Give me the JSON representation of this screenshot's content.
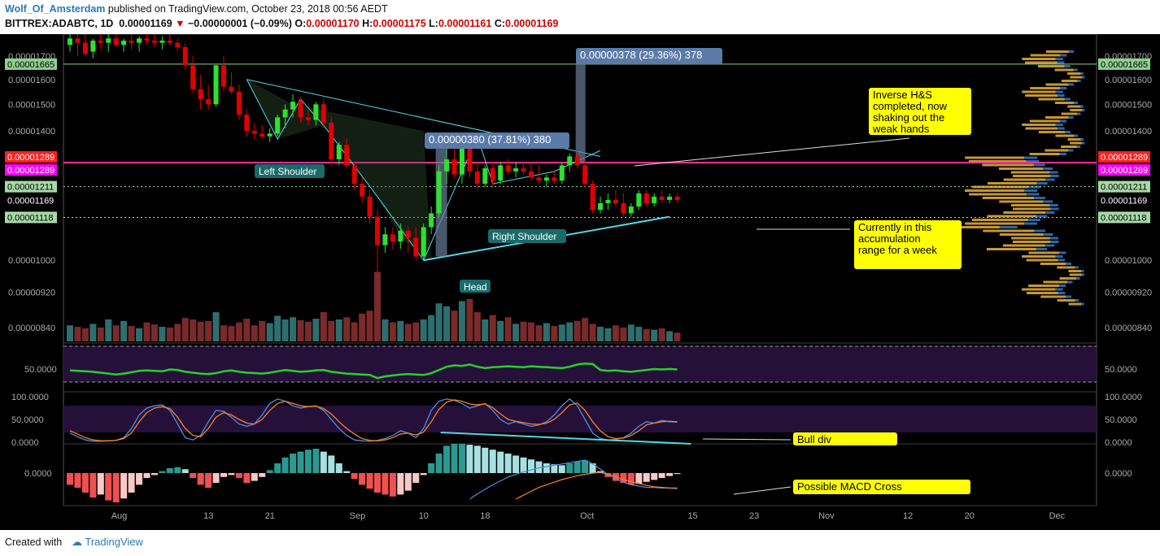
{
  "header": {
    "author": "Wolf_Of_Amsterdam",
    "published": " published on TradingView.com, October 23, 2018 00:56 AEDT",
    "symbol": "BITTREX:ADABTC, 1D",
    "price": "0.00001169",
    "change": "−0.00000001 (−0.09%)",
    "o_label": "O:",
    "o_val": "0.00001170",
    "h_label": "H:",
    "h_val": "0.00001175",
    "l_label": "L:",
    "l_val": "0.00001161",
    "c_label": "C:",
    "c_val": "0.00001169"
  },
  "footer": {
    "created": "Created with",
    "brand": "TradingView"
  },
  "colors": {
    "up": "#2ee12e",
    "down": "#e00000",
    "pink": "#ff2fa0",
    "magenta": "#ff00ff",
    "cyan": "#4fd8e8",
    "yellow": "#ffff00"
  },
  "chart_data": [
    {
      "type": "candlestick",
      "title": "BITTREX:ADABTC, 1D",
      "ylim": [
        8.1e-06,
        1.8e-05
      ],
      "log_scale": true,
      "y_ticks": [
        "0.00001700",
        "0.00001600",
        "0.00001500",
        "0.00001400",
        "0.00001000",
        "0.00000920",
        "0.00000840"
      ],
      "x_ticks": [
        "Aug",
        "13",
        "21",
        "Sep",
        "10",
        "18",
        "Oct",
        "15",
        "23",
        "Nov",
        "12",
        "20",
        "Dec"
      ],
      "x_tick_dates": [
        "2018-08-01",
        "2018-08-13",
        "2018-08-21",
        "2018-09-01",
        "2018-09-10",
        "2018-09-18",
        "2018-10-01",
        "2018-10-15",
        "2018-10-23",
        "2018-11-01",
        "2018-11-12",
        "2018-11-20",
        "2018-12-01"
      ],
      "date_start": "2018-07-26",
      "price_tags": [
        {
          "label": "0.00001665",
          "color": "#8fd08f",
          "text_color": "#000"
        },
        {
          "label": "0.00001289",
          "color": "#ff2020",
          "text_color": "#fff"
        },
        {
          "label": "0.00001289",
          "color": "#ff00ff",
          "text_color": "#fff"
        },
        {
          "label": "0.00001211",
          "color": "#a8d8a8",
          "text_color": "#000"
        },
        {
          "label": "0.00001169",
          "color": "#000000",
          "text_color": "#fff"
        },
        {
          "label": "0.00001118",
          "color": "#a8d8a8",
          "text_color": "#000"
        }
      ],
      "candles": [
        [
          1.75e-05,
          1.82e-05,
          1.72e-05,
          1.78e-05
        ],
        [
          1.78e-05,
          1.83e-05,
          1.7e-05,
          1.76e-05
        ],
        [
          1.76e-05,
          1.8e-05,
          1.7e-05,
          1.71e-05
        ],
        [
          1.72e-05,
          1.78e-05,
          1.69e-05,
          1.77e-05
        ],
        [
          1.77e-05,
          1.81e-05,
          1.73e-05,
          1.76e-05
        ],
        [
          1.76e-05,
          1.8e-05,
          1.72e-05,
          1.78e-05
        ],
        [
          1.78e-05,
          1.82e-05,
          1.74e-05,
          1.75e-05
        ],
        [
          1.75e-05,
          1.78e-05,
          1.72e-05,
          1.77e-05
        ],
        [
          1.77e-05,
          1.81e-05,
          1.73e-05,
          1.76e-05
        ],
        [
          1.76e-05,
          1.79e-05,
          1.72e-05,
          1.78e-05
        ],
        [
          1.78e-05,
          1.81e-05,
          1.75e-05,
          1.77e-05
        ],
        [
          1.77e-05,
          1.8e-05,
          1.74e-05,
          1.76e-05
        ],
        [
          1.76e-05,
          1.79e-05,
          1.73e-05,
          1.77e-05
        ],
        [
          1.77e-05,
          1.8e-05,
          1.75e-05,
          1.76e-05
        ],
        [
          1.76e-05,
          1.78e-05,
          1.72e-05,
          1.74e-05
        ],
        [
          1.74e-05,
          1.76e-05,
          1.64e-05,
          1.66e-05
        ],
        [
          1.66e-05,
          1.7e-05,
          1.54e-05,
          1.56e-05
        ],
        [
          1.56e-05,
          1.62e-05,
          1.48e-05,
          1.52e-05
        ],
        [
          1.52e-05,
          1.58e-05,
          1.48e-05,
          1.5e-05
        ],
        [
          1.5e-05,
          1.66e-05,
          1.49e-05,
          1.66e-05
        ],
        [
          1.66e-05,
          1.7e-05,
          1.55e-05,
          1.57e-05
        ],
        [
          1.57e-05,
          1.63e-05,
          1.54e-05,
          1.55e-05
        ],
        [
          1.55e-05,
          1.58e-05,
          1.44e-05,
          1.46e-05
        ],
        [
          1.46e-05,
          1.48e-05,
          1.38e-05,
          1.4e-05
        ],
        [
          1.4e-05,
          1.43e-05,
          1.37e-05,
          1.39e-05
        ],
        [
          1.39e-05,
          1.42e-05,
          1.37e-05,
          1.38e-05
        ],
        [
          1.38e-05,
          1.41e-05,
          1.36e-05,
          1.39e-05
        ],
        [
          1.39e-05,
          1.46e-05,
          1.38e-05,
          1.45e-05
        ],
        [
          1.45e-05,
          1.5e-05,
          1.41e-05,
          1.48e-05
        ],
        [
          1.48e-05,
          1.54e-05,
          1.45e-05,
          1.51e-05
        ],
        [
          1.51e-05,
          1.53e-05,
          1.43e-05,
          1.45e-05
        ],
        [
          1.45e-05,
          1.48e-05,
          1.42e-05,
          1.44e-05
        ],
        [
          1.44e-05,
          1.51e-05,
          1.42e-05,
          1.5e-05
        ],
        [
          1.5e-05,
          1.52e-05,
          1.41e-05,
          1.43e-05
        ],
        [
          1.43e-05,
          1.45e-05,
          1.28e-05,
          1.3e-05
        ],
        [
          1.3e-05,
          1.36e-05,
          1.28e-05,
          1.35e-05
        ],
        [
          1.35e-05,
          1.37e-05,
          1.27e-05,
          1.28e-05
        ],
        [
          1.28e-05,
          1.29e-05,
          1.2e-05,
          1.22e-05
        ],
        [
          1.22e-05,
          1.24e-05,
          1.16e-05,
          1.18e-05
        ],
        [
          1.18e-05,
          1.2e-05,
          1.1e-05,
          1.12e-05
        ],
        [
          1.12e-05,
          1.14e-05,
          8.2e-06,
          1.04e-05
        ],
        [
          1.04e-05,
          1.09e-05,
          1.02e-05,
          1.07e-05
        ],
        [
          1.07e-05,
          1.09e-05,
          1.03e-05,
          1.05e-05
        ],
        [
          1.05e-05,
          1.1e-05,
          1.03e-05,
          1.08e-05
        ],
        [
          1.08e-05,
          1.09e-05,
          1.02e-05,
          1.06e-05
        ],
        [
          1.06e-05,
          1.09e-05,
          1e-05,
          1.01e-05
        ],
        [
          1.01e-05,
          1.1e-05,
          1e-05,
          1.09e-05
        ],
        [
          1.09e-05,
          1.15e-05,
          1.07e-05,
          1.13e-05
        ],
        [
          1.13e-05,
          1.28e-05,
          1.12e-05,
          1.26e-05
        ],
        [
          1.26e-05,
          1.35e-05,
          1.22e-05,
          1.3e-05
        ],
        [
          1.3e-05,
          1.34e-05,
          1.24e-05,
          1.25e-05
        ],
        [
          1.25e-05,
          1.38e-05,
          1.22e-05,
          1.36e-05
        ],
        [
          1.36e-05,
          1.38e-05,
          1.24e-05,
          1.26e-05
        ],
        [
          1.26e-05,
          1.29e-05,
          1.2e-05,
          1.22e-05
        ],
        [
          1.22e-05,
          1.28e-05,
          1.21e-05,
          1.27e-05
        ],
        [
          1.27e-05,
          1.29e-05,
          1.21e-05,
          1.23e-05
        ],
        [
          1.23e-05,
          1.29e-05,
          1.22e-05,
          1.28e-05
        ],
        [
          1.28e-05,
          1.3e-05,
          1.25e-05,
          1.26e-05
        ],
        [
          1.26e-05,
          1.29e-05,
          1.24e-05,
          1.27e-05
        ],
        [
          1.27e-05,
          1.29e-05,
          1.25e-05,
          1.26e-05
        ],
        [
          1.26e-05,
          1.29e-05,
          1.23e-05,
          1.24e-05
        ],
        [
          1.24e-05,
          1.28e-05,
          1.22e-05,
          1.23e-05
        ],
        [
          1.23e-05,
          1.25e-05,
          1.21e-05,
          1.24e-05
        ],
        [
          1.24e-05,
          1.26e-05,
          1.22e-05,
          1.23e-05
        ],
        [
          1.23e-05,
          1.29e-05,
          1.22e-05,
          1.28e-05
        ],
        [
          1.28e-05,
          1.32e-05,
          1.26e-05,
          1.31e-05
        ],
        [
          1.31e-05,
          1.33e-05,
          1.27e-05,
          1.28e-05
        ],
        [
          1.28e-05,
          1.31e-05,
          1.21e-05,
          1.22e-05
        ],
        [
          1.22e-05,
          1.23e-05,
          1.13e-05,
          1.14e-05
        ],
        [
          1.14e-05,
          1.18e-05,
          1.13e-05,
          1.16e-05
        ],
        [
          1.16e-05,
          1.19e-05,
          1.14e-05,
          1.17e-05
        ],
        [
          1.17e-05,
          1.2e-05,
          1.15e-05,
          1.16e-05
        ],
        [
          1.16e-05,
          1.19e-05,
          1.12e-05,
          1.13e-05
        ],
        [
          1.13e-05,
          1.16e-05,
          1.12e-05,
          1.15e-05
        ],
        [
          1.15e-05,
          1.2e-05,
          1.14e-05,
          1.19e-05
        ],
        [
          1.19e-05,
          1.2e-05,
          1.15e-05,
          1.16e-05
        ],
        [
          1.16e-05,
          1.19e-05,
          1.15e-05,
          1.18e-05
        ],
        [
          1.18e-05,
          1.2e-05,
          1.16e-05,
          1.17e-05
        ],
        [
          1.17e-05,
          1.19e-05,
          1.16e-05,
          1.18e-05
        ],
        [
          1.18e-05,
          1.19e-05,
          1.16e-05,
          1.17e-05
        ]
      ],
      "volume": [
        22,
        20,
        18,
        24,
        19,
        30,
        22,
        28,
        21,
        18,
        26,
        23,
        20,
        19,
        24,
        32,
        30,
        27,
        28,
        40,
        22,
        21,
        26,
        31,
        22,
        28,
        25,
        35,
        30,
        33,
        29,
        27,
        31,
        40,
        28,
        30,
        33,
        26,
        38,
        42,
        95,
        30,
        26,
        28,
        24,
        26,
        30,
        36,
        52,
        48,
        42,
        55,
        58,
        40,
        30,
        36,
        28,
        33,
        24,
        27,
        26,
        22,
        25,
        21,
        23,
        26,
        28,
        32,
        24,
        20,
        18,
        22,
        19,
        23,
        20,
        17,
        16,
        18,
        14,
        12
      ],
      "annotations": [
        "0.00000378 (29.36%) 378",
        "0.00000380 (37.81%) 380",
        "Left Shoulder",
        "Head",
        "Right Shoulder",
        "Inverse H&S completed, now shaking out the weak hands",
        "Currently in this accumulation range for a week"
      ]
    },
    {
      "type": "line",
      "name": "RSI",
      "y_ticks": [
        "50.0000"
      ],
      "ylim": [
        0,
        100
      ],
      "values": [
        47,
        46,
        45,
        44,
        42,
        40,
        38,
        40,
        43,
        46,
        47,
        46,
        45,
        49,
        48,
        44,
        42,
        40,
        39,
        41,
        45,
        47,
        44,
        42,
        41,
        40,
        42,
        45,
        48,
        46,
        44,
        45,
        47,
        48,
        44,
        42,
        40,
        39,
        38,
        37,
        30,
        34,
        36,
        38,
        39,
        38,
        37,
        41,
        48,
        55,
        58,
        57,
        60,
        55,
        52,
        54,
        55,
        56,
        55,
        54,
        56,
        55,
        54,
        53,
        52,
        55,
        60,
        62,
        61,
        48,
        46,
        47,
        45,
        44,
        46,
        48,
        50,
        49,
        50,
        49
      ]
    },
    {
      "type": "line",
      "name": "Stoch RSI",
      "y_ticks": [
        "100.0000",
        "50.0000",
        "0.0000"
      ],
      "ylim": [
        0,
        100
      ],
      "annotation": "Bull div",
      "series": [
        {
          "color": "#4a90e2",
          "values": [
            20,
            12,
            5,
            2,
            2,
            3,
            4,
            10,
            30,
            60,
            75,
            80,
            82,
            70,
            40,
            10,
            5,
            15,
            45,
            70,
            68,
            55,
            40,
            35,
            40,
            60,
            85,
            95,
            90,
            80,
            75,
            78,
            80,
            70,
            50,
            30,
            15,
            5,
            3,
            2,
            4,
            8,
            15,
            25,
            20,
            10,
            30,
            70,
            90,
            95,
            92,
            85,
            75,
            80,
            85,
            70,
            50,
            40,
            45,
            40,
            35,
            38,
            45,
            60,
            80,
            95,
            80,
            50,
            20,
            8,
            5,
            6,
            10,
            20,
            35,
            45,
            42,
            48,
            45,
            44
          ]
        },
        {
          "color": "#ff7f27",
          "values": [
            25,
            18,
            10,
            5,
            3,
            3,
            4,
            8,
            20,
            45,
            65,
            75,
            78,
            74,
            55,
            30,
            15,
            12,
            30,
            55,
            65,
            60,
            50,
            42,
            40,
            50,
            70,
            85,
            90,
            85,
            80,
            78,
            79,
            74,
            62,
            45,
            30,
            18,
            8,
            4,
            3,
            5,
            10,
            18,
            20,
            16,
            22,
            45,
            72,
            88,
            93,
            90,
            84,
            82,
            84,
            76,
            62,
            50,
            46,
            43,
            40,
            39,
            42,
            50,
            65,
            82,
            86,
            70,
            45,
            25,
            12,
            8,
            9,
            15,
            25,
            38,
            42,
            45,
            46,
            45
          ]
        }
      ]
    },
    {
      "type": "bar",
      "name": "MACD",
      "y_ticks": [
        "0.0000"
      ],
      "annotation": "Possible MACD Cross",
      "histogram": [
        -12,
        -15,
        -20,
        -25,
        -22,
        -28,
        -30,
        -26,
        -20,
        -12,
        -5,
        -2,
        2,
        5,
        6,
        4,
        -5,
        -12,
        -15,
        -10,
        -4,
        -2,
        -5,
        -10,
        -8,
        -4,
        3,
        10,
        16,
        20,
        22,
        24,
        25,
        22,
        18,
        10,
        2,
        -6,
        -12,
        -16,
        -20,
        -22,
        -24,
        -22,
        -18,
        -10,
        -2,
        10,
        20,
        28,
        30,
        30,
        29,
        28,
        26,
        24,
        22,
        20,
        18,
        16,
        14,
        12,
        10,
        9,
        8,
        10,
        12,
        13,
        10,
        2,
        -4,
        -8,
        -10,
        -12,
        -11,
        -9,
        -7,
        -5,
        -3,
        -1
      ],
      "macd_line": [
        null,
        null,
        null,
        null,
        null,
        null,
        null,
        null,
        null,
        null,
        null,
        null,
        null,
        null,
        null,
        null,
        null,
        null,
        null,
        null,
        null,
        null,
        null,
        null,
        null,
        null,
        null,
        null,
        null,
        null,
        null,
        null,
        null,
        null,
        null,
        null,
        null,
        null,
        null,
        null,
        null,
        null,
        null,
        null,
        null,
        null,
        null,
        null,
        null,
        null,
        null,
        null,
        -40,
        -32,
        -25,
        -18,
        -12,
        -6,
        -2,
        2,
        5,
        8,
        10,
        12,
        14,
        16,
        18,
        20,
        14,
        6,
        -2,
        -8,
        -14,
        -18,
        -20,
        -22,
        -22,
        -23,
        -23,
        -24
      ],
      "signal_line": [
        null,
        null,
        null,
        null,
        null,
        null,
        null,
        null,
        null,
        null,
        null,
        null,
        null,
        null,
        null,
        null,
        null,
        null,
        null,
        null,
        null,
        null,
        null,
        null,
        null,
        null,
        null,
        null,
        null,
        null,
        null,
        null,
        null,
        null,
        null,
        null,
        null,
        null,
        null,
        null,
        null,
        null,
        null,
        null,
        null,
        null,
        null,
        null,
        null,
        null,
        null,
        null,
        null,
        null,
        null,
        null,
        null,
        null,
        -40,
        -34,
        -28,
        -22,
        -18,
        -14,
        -10,
        -7,
        -4,
        -2,
        0,
        1,
        -2,
        -6,
        -10,
        -13,
        -16,
        -19,
        -21,
        -22,
        -23,
        -23
      ]
    }
  ]
}
